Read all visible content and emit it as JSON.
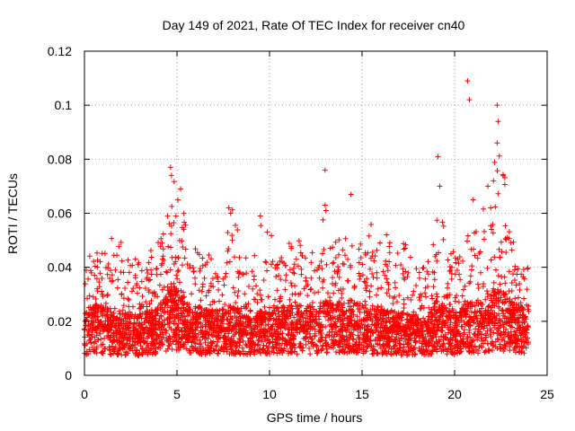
{
  "chart_data": {
    "type": "scatter",
    "title": "Day 149 of 2021, Rate Of TEC Index for receiver cn40",
    "xlabel": "GPS time / hours",
    "ylabel": "ROTI / TECUs",
    "xlim": [
      0,
      25
    ],
    "ylim": [
      0,
      0.12
    ],
    "xticks": [
      0,
      5,
      10,
      15,
      20,
      25
    ],
    "xtick_labels": [
      "0",
      "5",
      "10",
      "15",
      "20",
      "25"
    ],
    "yticks": [
      0,
      0.02,
      0.04,
      0.06,
      0.08,
      0.1,
      0.12
    ],
    "ytick_labels": [
      "0",
      "0.02",
      "0.04",
      "0.06",
      "0.08",
      "0.1",
      "0.12"
    ],
    "grid": true,
    "marker": "+",
    "color": "#ff0000",
    "x_data_range": [
      0,
      24
    ],
    "envelope": {
      "x": [
        0,
        0.5,
        1.0,
        1.5,
        2.0,
        2.5,
        3.0,
        3.5,
        4.0,
        4.5,
        4.8,
        5.2,
        5.7,
        6.5,
        7.5,
        8.0,
        9.0,
        9.5,
        10.5,
        11.5,
        12.5,
        13.0,
        14.0,
        14.5,
        15.5,
        16.5,
        17.5,
        18.5,
        19.0,
        19.5,
        20.0,
        20.5,
        21.0,
        21.5,
        22.0,
        22.5,
        23.0,
        24.0
      ],
      "ymax": [
        0.042,
        0.052,
        0.046,
        0.052,
        0.05,
        0.051,
        0.044,
        0.045,
        0.052,
        0.062,
        0.077,
        0.069,
        0.049,
        0.045,
        0.046,
        0.062,
        0.038,
        0.058,
        0.053,
        0.05,
        0.048,
        0.062,
        0.052,
        0.059,
        0.056,
        0.052,
        0.048,
        0.044,
        0.07,
        0.052,
        0.045,
        0.064,
        0.058,
        0.065,
        0.073,
        0.093,
        0.052,
        0.04
      ],
      "ybase": [
        0.016,
        0.017,
        0.017,
        0.016,
        0.015,
        0.015,
        0.015,
        0.016,
        0.017,
        0.02,
        0.022,
        0.02,
        0.017,
        0.016,
        0.016,
        0.017,
        0.014,
        0.016,
        0.017,
        0.017,
        0.017,
        0.018,
        0.018,
        0.018,
        0.017,
        0.016,
        0.015,
        0.014,
        0.018,
        0.017,
        0.016,
        0.018,
        0.018,
        0.018,
        0.02,
        0.021,
        0.018,
        0.016
      ]
    },
    "outliers": [
      {
        "x": 20.7,
        "y": 0.109
      },
      {
        "x": 20.8,
        "y": 0.102
      },
      {
        "x": 22.3,
        "y": 0.1
      },
      {
        "x": 22.35,
        "y": 0.094
      },
      {
        "x": 22.3,
        "y": 0.086
      },
      {
        "x": 19.1,
        "y": 0.081
      },
      {
        "x": 13.0,
        "y": 0.076
      },
      {
        "x": 4.65,
        "y": 0.077
      },
      {
        "x": 4.7,
        "y": 0.074
      },
      {
        "x": 14.4,
        "y": 0.067
      },
      {
        "x": 21.0,
        "y": 0.065
      },
      {
        "x": 21.8,
        "y": 0.07
      },
      {
        "x": 22.1,
        "y": 0.072
      },
      {
        "x": 7.8,
        "y": 0.062
      },
      {
        "x": 7.9,
        "y": 0.06
      },
      {
        "x": 13.0,
        "y": 0.063
      },
      {
        "x": 13.05,
        "y": 0.061
      },
      {
        "x": 9.5,
        "y": 0.059
      },
      {
        "x": 5.2,
        "y": 0.069
      },
      {
        "x": 19.2,
        "y": 0.07
      }
    ]
  }
}
